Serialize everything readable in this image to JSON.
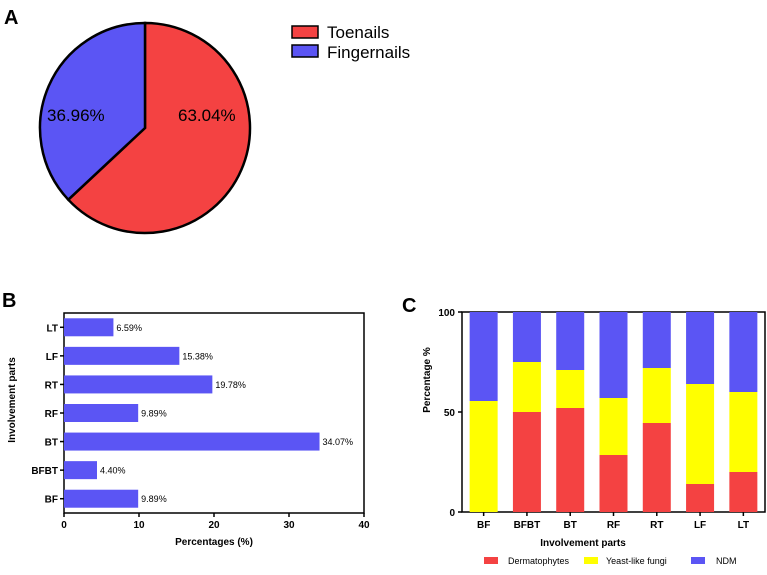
{
  "panels": {
    "a": "A",
    "b": "B",
    "c": "C"
  },
  "colors": {
    "red": "#F44242",
    "blue": "#5B55F4",
    "yellow": "#FFFF00",
    "axis": "#000000"
  },
  "chart_data": [
    {
      "type": "pie",
      "panel": "A",
      "labels": [
        "Toenails",
        "Fingernails"
      ],
      "values": [
        63.04,
        36.96
      ],
      "value_labels": [
        "63.04%",
        "36.96%"
      ],
      "colors": [
        "#F44242",
        "#5B55F4"
      ],
      "legend": [
        "Toenails",
        "Fingernails"
      ]
    },
    {
      "type": "bar",
      "orientation": "horizontal",
      "panel": "B",
      "categories": [
        "LT",
        "LF",
        "RT",
        "RF",
        "BT",
        "BFBT",
        "BF"
      ],
      "values": [
        6.59,
        15.38,
        19.78,
        9.89,
        34.07,
        4.4,
        9.89
      ],
      "value_labels": [
        "6.59%",
        "15.38%",
        "19.78%",
        "9.89%",
        "34.07%",
        "4.40%",
        "9.89%"
      ],
      "xlabel": "Percentages (%)",
      "ylabel": "Involvement parts",
      "xlim": [
        0,
        40
      ],
      "xticks": [
        "0",
        "10",
        "20",
        "30",
        "40"
      ],
      "color": "#5B55F4"
    },
    {
      "type": "bar",
      "stacked": true,
      "panel": "C",
      "categories": [
        "BF",
        "BFBT",
        "BT",
        "RF",
        "RT",
        "LF",
        "LT"
      ],
      "series": [
        {
          "name": "Dermatophytes",
          "values": [
            0,
            50,
            52,
            28.5,
            44.5,
            14,
            20
          ],
          "color": "#F44242"
        },
        {
          "name": "Yeast-like fungi",
          "values": [
            55.5,
            25,
            19,
            28.5,
            27.5,
            50,
            40
          ],
          "color": "#FFFF00"
        },
        {
          "name": "NDM",
          "values": [
            44.5,
            25,
            29,
            43,
            28,
            36,
            40
          ],
          "color": "#5B55F4"
        }
      ],
      "xlabel": "Involvement parts",
      "ylabel": "Percentage %",
      "ylim": [
        0,
        100
      ],
      "yticks": [
        "0",
        "50",
        "100"
      ],
      "legend": [
        "Dermatophytes",
        "Yeast-like fungi",
        "NDM"
      ]
    }
  ]
}
